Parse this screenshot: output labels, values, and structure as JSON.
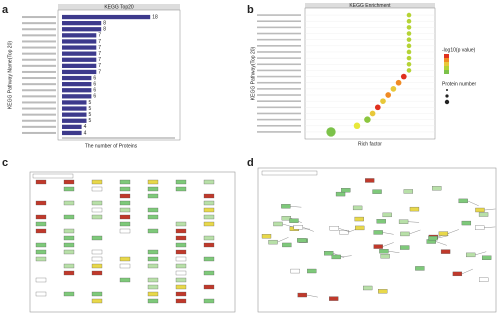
{
  "panels": [
    "a",
    "b",
    "c",
    "d"
  ],
  "chart_data": [
    {
      "type": "hbar",
      "title": "KEGG Top20",
      "xlabel": "The number of Proteins",
      "ylabel": "KEGG Pathway Name(Top 20)",
      "categories": [
        null,
        null,
        null,
        null,
        null,
        null,
        null,
        null,
        null,
        null,
        null,
        null,
        null,
        null,
        null,
        null,
        null,
        null,
        null,
        null
      ],
      "values": [
        18,
        8,
        8,
        7,
        7,
        7,
        7,
        7,
        7,
        7,
        6,
        6,
        6,
        6,
        5,
        5,
        5,
        5,
        4,
        4
      ],
      "color": "#3d3a8c",
      "xlim": [
        0,
        20
      ]
    },
    {
      "type": "dot",
      "title": "KEGG Enrichment",
      "xlabel": "Rich factor",
      "ylabel": "KEGG Pathway(Top 20)",
      "legend_color_title": "-log10(p value)",
      "legend_size_title": "Protein number",
      "categories": [
        null,
        null,
        null,
        null,
        null,
        null,
        null,
        null,
        null,
        null,
        null,
        null,
        null,
        null,
        null,
        null,
        null,
        null,
        null,
        null
      ],
      "values": [
        0.2,
        0.2,
        0.2,
        0.2,
        0.2,
        0.2,
        0.2,
        0.2,
        0.2,
        0.2,
        0.19,
        0.18,
        0.17,
        0.16,
        0.15,
        0.14,
        0.13,
        0.12,
        0.1,
        0.05
      ],
      "sizes": [
        1,
        1,
        1,
        1,
        1,
        1,
        1,
        1,
        1,
        1,
        2,
        2,
        2,
        2,
        2,
        2,
        2,
        3,
        3,
        8
      ],
      "colors": [
        "#b5d335",
        "#b5d335",
        "#b5d335",
        "#b5d335",
        "#b5d335",
        "#b5d335",
        "#b5d335",
        "#b5d335",
        "#b5d335",
        "#b5d335",
        "#e0301e",
        "#f08a24",
        "#e8c83a",
        "#f08a24",
        "#e8c83a",
        "#e0301e",
        "#e8c83a",
        "#8cc63f",
        "#e8e83a",
        "#7cc24a"
      ],
      "xlim": [
        0,
        0.25
      ]
    }
  ]
}
